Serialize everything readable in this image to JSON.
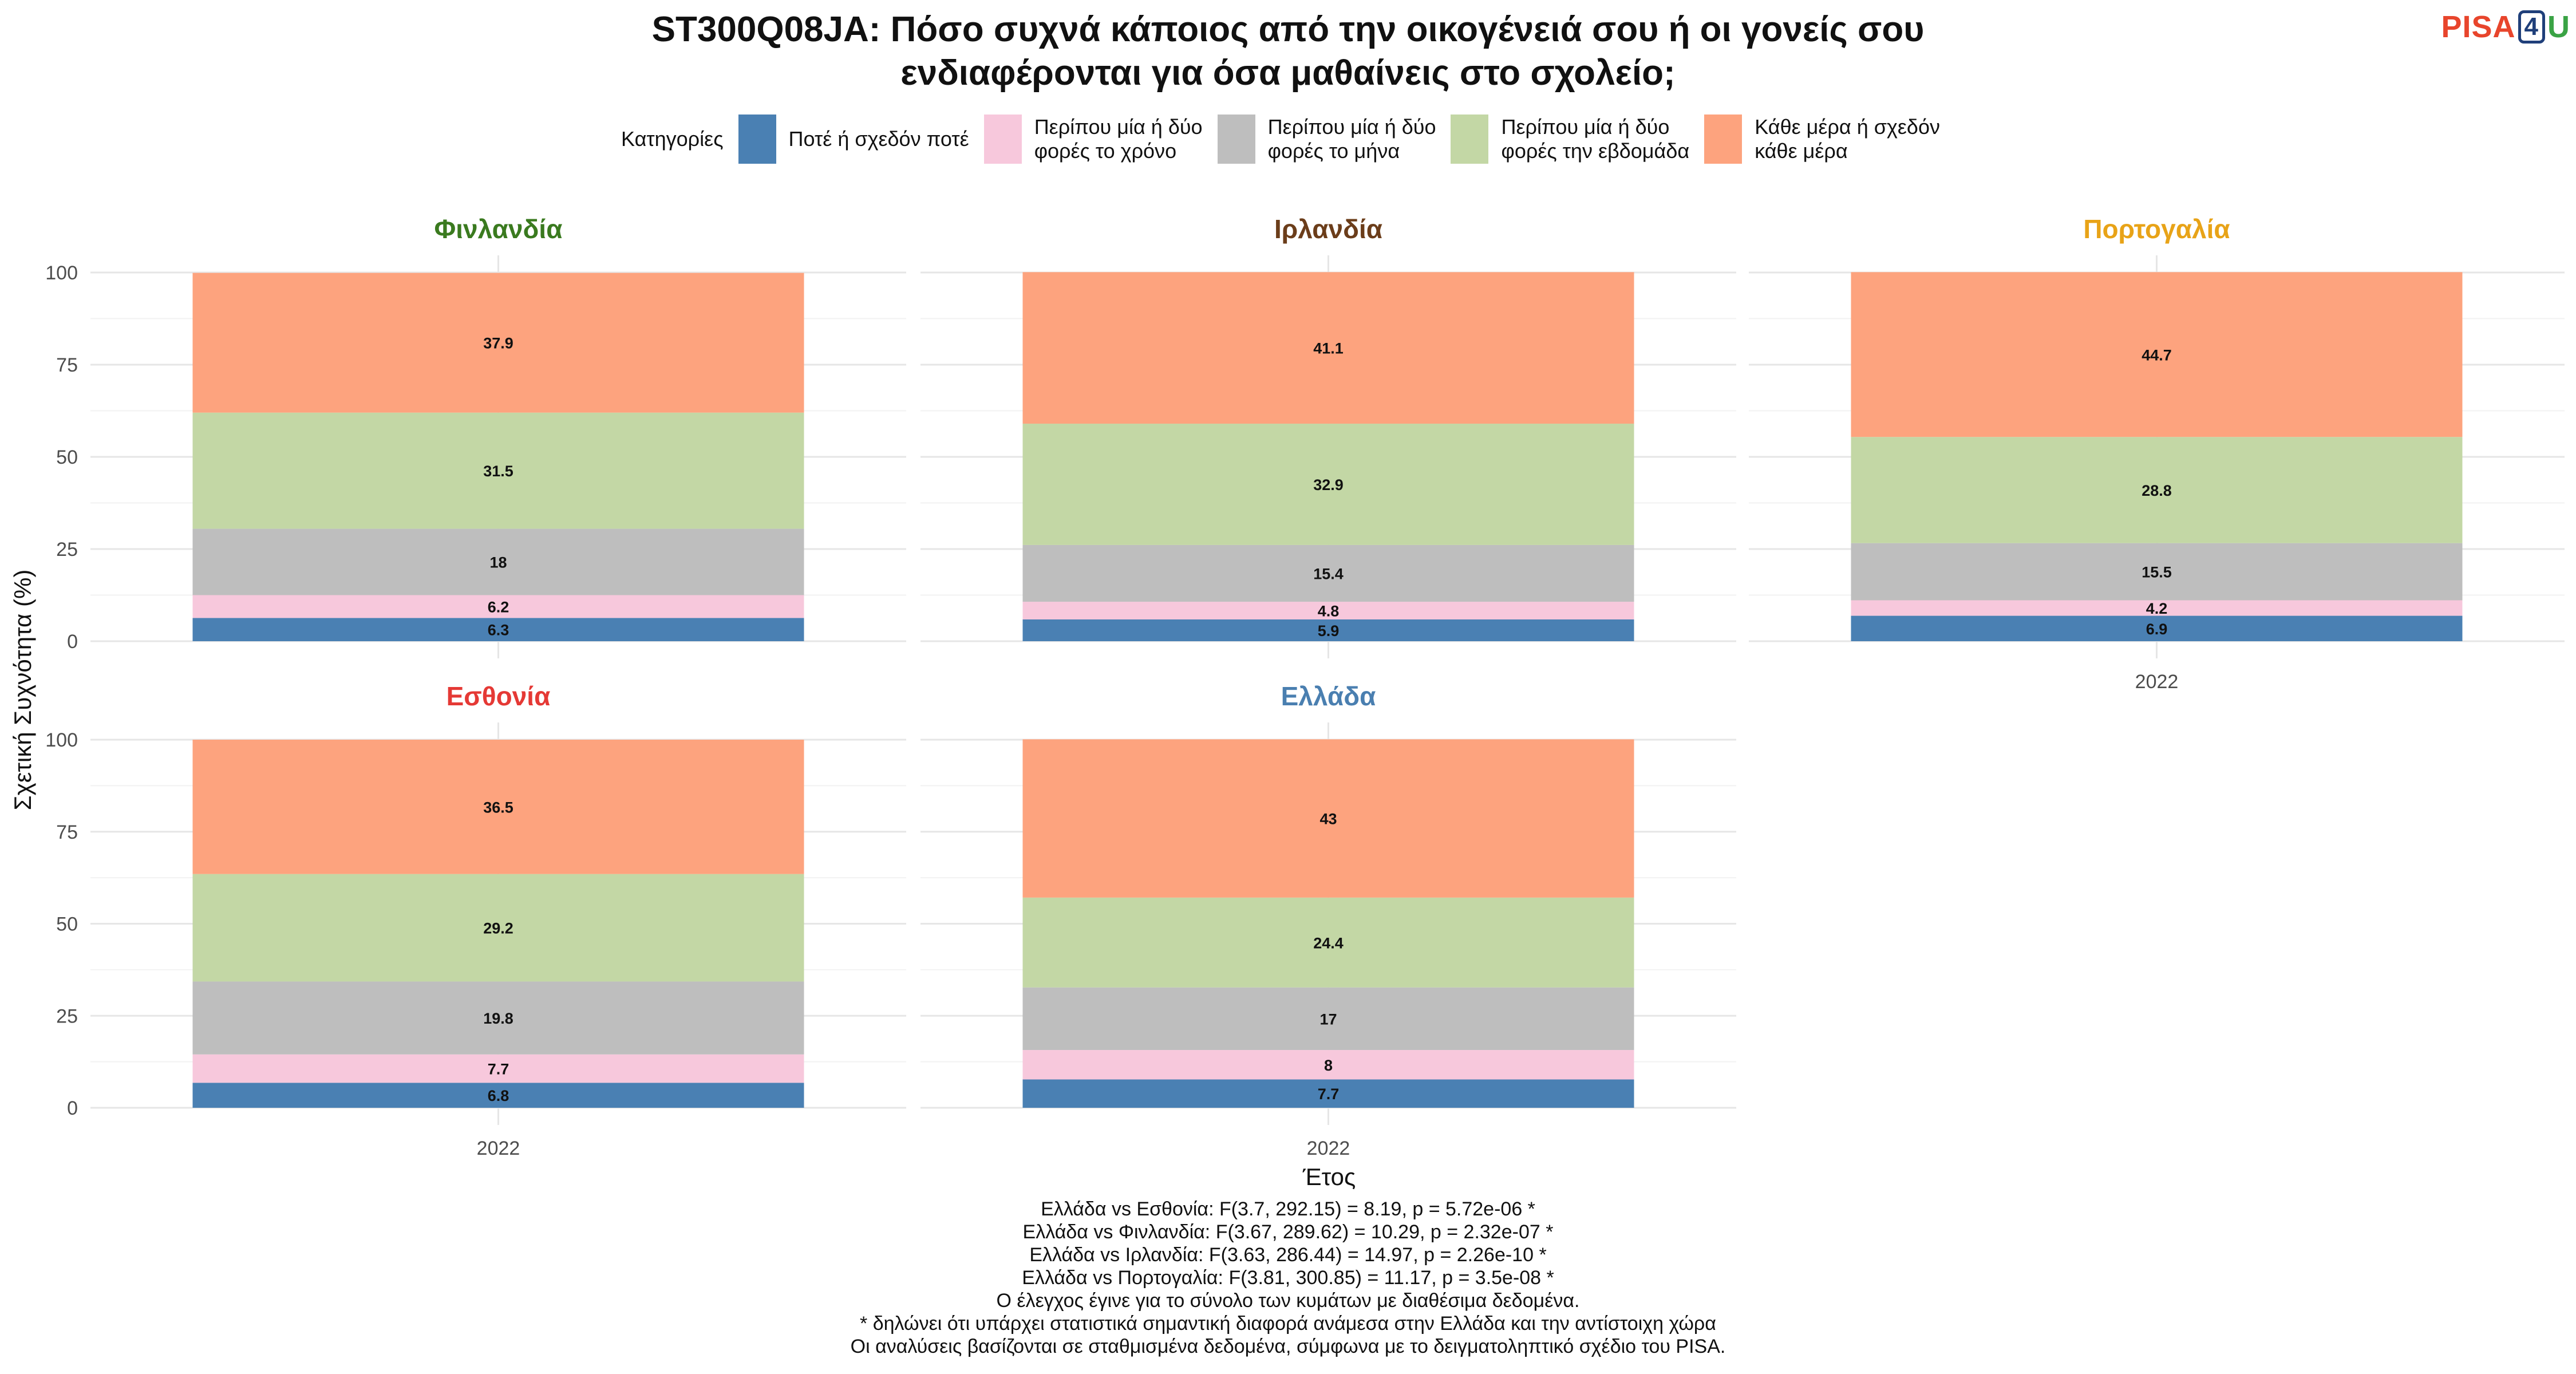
{
  "title_lines": [
    "ST300Q08JA: Πόσο συχνά κάποιος από την οικογένειά σου ή οι γονείς σου",
    "ενδιαφέρονται για όσα μαθαίνεις στο σχολείο;"
  ],
  "logo": {
    "pisa": "PISA",
    "four": "4",
    "u": "U"
  },
  "chart_data": {
    "type": "bar",
    "stacked": true,
    "legend_title": "Κατηγορίες",
    "legend_position": "top",
    "categories": [
      "2022"
    ],
    "xlabel": "Έτος",
    "ylabel": "Σχετική Συχνότητα (%)",
    "ylim": [
      0,
      100
    ],
    "yticks": [
      0,
      25,
      50,
      75,
      100
    ],
    "grid": true,
    "series": [
      {
        "name": "Ποτέ ή σχεδόν ποτέ",
        "color": "#4a80b3"
      },
      {
        "name": "Περίπου μία ή δύο\nφορές το χρόνο",
        "color": "#f7c8dc"
      },
      {
        "name": "Περίπου μία ή δύο\nφορές το μήνα",
        "color": "#bebebe"
      },
      {
        "name": "Περίπου μία ή δύο\nφορές την εβδομάδα",
        "color": "#c3d7a5"
      },
      {
        "name": "Κάθε μέρα ή σχεδόν\nκάθε μέρα",
        "color": "#fda37e"
      }
    ],
    "panels": [
      {
        "country": "Φινλανδία",
        "color": "#3a7a1f",
        "values": [
          6.3,
          6.2,
          18,
          31.5,
          37.9
        ]
      },
      {
        "country": "Ιρλανδία",
        "color": "#6b3d1a",
        "values": [
          5.9,
          4.8,
          15.4,
          32.9,
          41.1
        ]
      },
      {
        "country": "Πορτογαλία",
        "color": "#e8a317",
        "values": [
          6.9,
          4.2,
          15.5,
          28.8,
          44.7
        ]
      },
      {
        "country": "Εσθονία",
        "color": "#e53935",
        "values": [
          6.8,
          7.7,
          19.8,
          29.2,
          36.5
        ]
      },
      {
        "country": "Ελλάδα",
        "color": "#4a7fb0",
        "values": [
          7.7,
          8,
          17,
          24.4,
          43
        ]
      }
    ]
  },
  "notes": [
    "Ελλάδα vs Εσθονία: F(3.7, 292.15) = 8.19, p = 5.72e-06 *",
    "Ελλάδα vs Φινλανδία: F(3.67, 289.62) = 10.29, p = 2.32e-07 *",
    "Ελλάδα vs Ιρλανδία: F(3.63, 286.44) = 14.97, p = 2.26e-10 *",
    "Ελλάδα vs Πορτογαλία: F(3.81, 300.85) = 11.17, p = 3.5e-08 *",
    "Ο έλεγχος έγινε για το σύνολο των κυμάτων με διαθέσιμα δεδομένα.",
    "* δηλώνει ότι υπάρχει στατιστικά σημαντική διαφορά ανάμεσα στην Ελλάδα και την αντίστοιχη χώρα",
    "Οι αναλύσεις βασίζονται σε σταθμισμένα δεδομένα, σύμφωνα με το δειγματοληπτικό σχέδιο του PISA."
  ]
}
